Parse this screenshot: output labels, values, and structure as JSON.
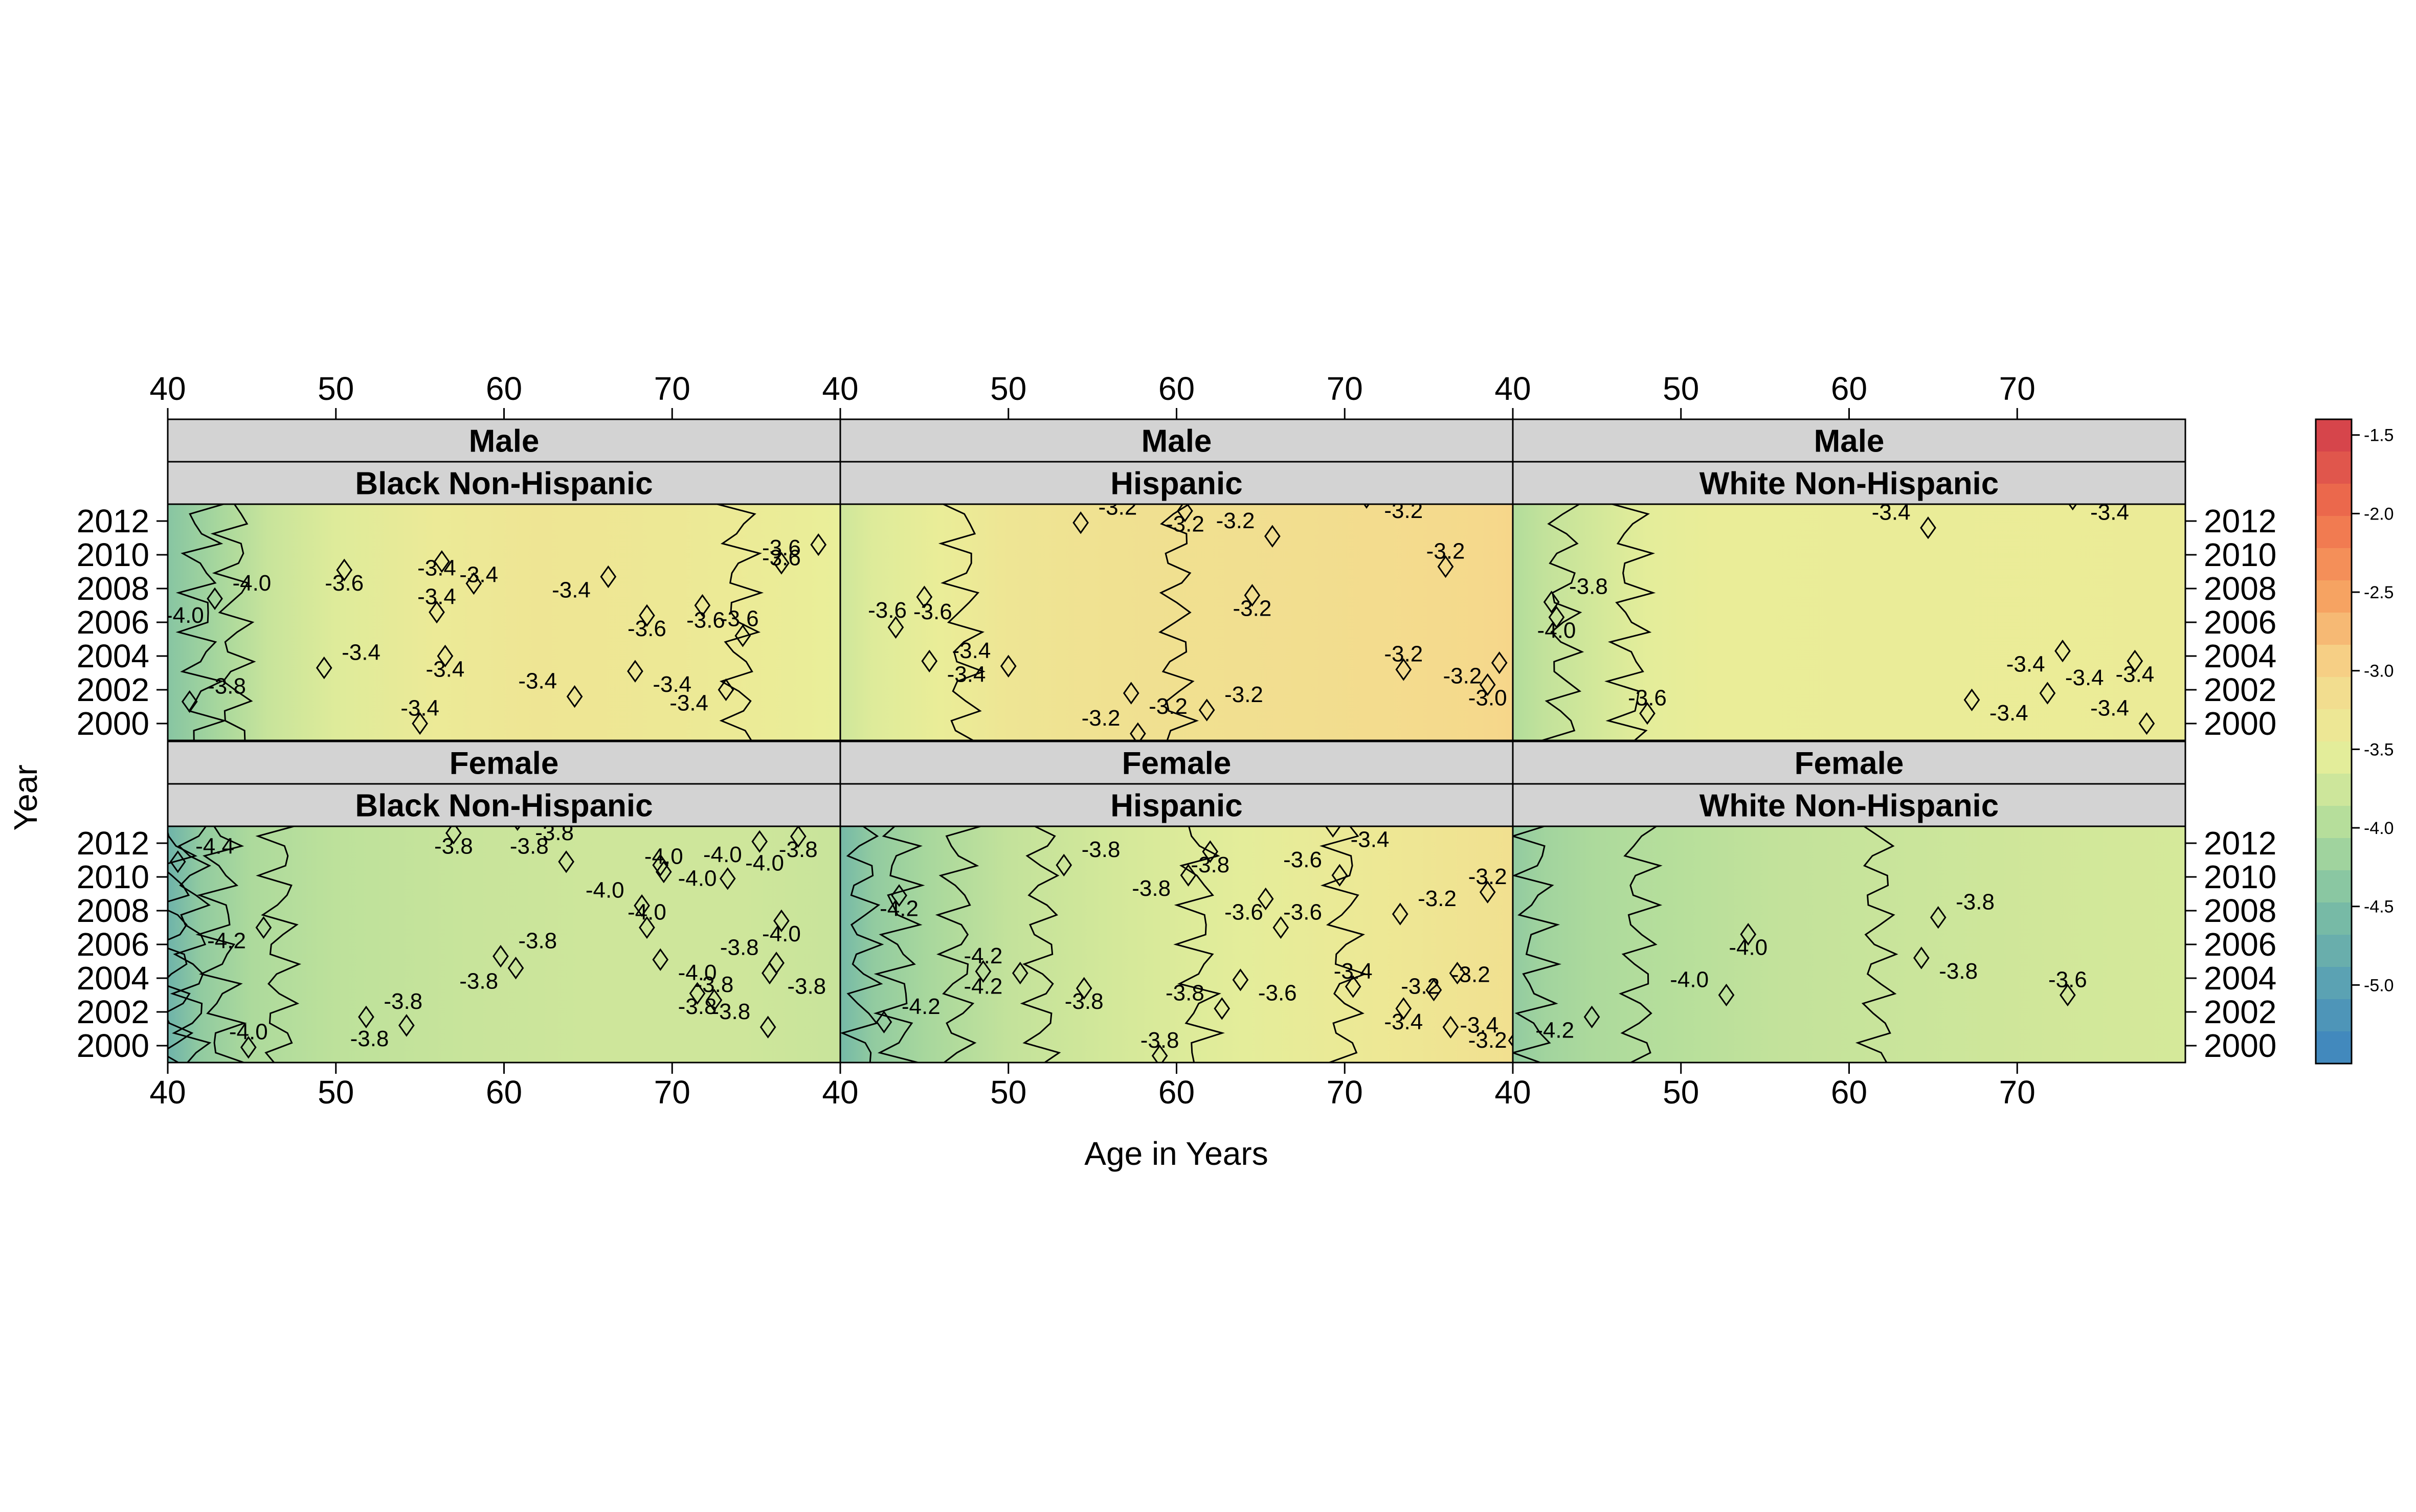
{
  "chart_data": {
    "type": "heatmap",
    "subtype": "filled contour (levelplot) with contour lines, trellis panels",
    "xlabel": "Age in Years",
    "ylabel": "Year",
    "xlim": [
      40,
      80
    ],
    "ylim": [
      1999,
      2013
    ],
    "x_ticks": [
      "40",
      "50",
      "60",
      "70"
    ],
    "y_ticks": [
      "2000",
      "2002",
      "2004",
      "2006",
      "2008",
      "2010",
      "2012"
    ],
    "grid": false,
    "colorkey": {
      "placement": "right",
      "range": [
        -5.5,
        -1.4
      ],
      "tick_labels": [
        "-1.5",
        "-2.0",
        "-2.5",
        "-3.0",
        "-3.5",
        "-4.0",
        "-4.5",
        "-5.0"
      ],
      "tick_values": [
        -1.5,
        -2.0,
        -2.5,
        -3.0,
        -3.5,
        -4.0,
        -4.5,
        -5.0
      ],
      "color_stops": [
        {
          "value": -5.5,
          "color": "#3c83c0"
        },
        {
          "value": -5.0,
          "color": "#5aa1b3"
        },
        {
          "value": -4.5,
          "color": "#7cbfa4"
        },
        {
          "value": -4.0,
          "color": "#b2dd9b"
        },
        {
          "value": -3.5,
          "color": "#e9ef9a"
        },
        {
          "value": -3.0,
          "color": "#f6d68a"
        },
        {
          "value": -2.5,
          "color": "#f6a060"
        },
        {
          "value": -2.0,
          "color": "#ef6f4c"
        },
        {
          "value": -1.4,
          "color": "#d13c4b"
        }
      ]
    },
    "panels": [
      {
        "sex": "Male",
        "race": "Black Non-Hispanic",
        "row": 0,
        "col": 0,
        "field": {
          "type": "gradient",
          "x_values": [
            40,
            43,
            46,
            50,
            56,
            62,
            70,
            78,
            80
          ],
          "z_values": [
            -4.4,
            -4.1,
            -3.8,
            -3.6,
            -3.4,
            -3.3,
            -3.35,
            -3.45,
            -3.5
          ]
        },
        "contour_labels": [
          {
            "text": "-4.0",
            "age": 45,
            "year": 2008.3
          },
          {
            "text": "-3.6",
            "age": 50.5,
            "year": 2008.3
          },
          {
            "text": "-3.4",
            "age": 56,
            "year": 2009.2
          },
          {
            "text": "-3.4",
            "age": 58.5,
            "year": 2008.8
          },
          {
            "text": "-3.4",
            "age": 56,
            "year": 2007.5
          },
          {
            "text": "-3.4",
            "age": 64,
            "year": 2007.9
          },
          {
            "text": "-4.0",
            "age": 41,
            "year": 2006.4
          },
          {
            "text": "-3.6",
            "age": 68.5,
            "year": 2005.6
          },
          {
            "text": "-3.6",
            "age": 72,
            "year": 2006.1
          },
          {
            "text": "-3.6",
            "age": 74,
            "year": 2006.2
          },
          {
            "text": "-3.6",
            "age": 76.5,
            "year": 2010.4
          },
          {
            "text": "-3.6",
            "age": 76.5,
            "year": 2009.8
          },
          {
            "text": "-3.4",
            "age": 51.5,
            "year": 2004.2
          },
          {
            "text": "-3.4",
            "age": 56.5,
            "year": 2003.2
          },
          {
            "text": "-3.4",
            "age": 62,
            "year": 2002.5
          },
          {
            "text": "-3.4",
            "age": 70,
            "year": 2002.3
          },
          {
            "text": "-3.4",
            "age": 55,
            "year": 2000.9
          },
          {
            "text": "-3.4",
            "age": 71,
            "year": 2001.2
          },
          {
            "text": "-3.8",
            "age": 43.5,
            "year": 2002.2
          }
        ]
      },
      {
        "sex": "Male",
        "race": "Hispanic",
        "row": 0,
        "col": 1,
        "field": {
          "type": "gradient",
          "x_values": [
            40,
            42,
            46,
            50,
            56,
            64,
            72,
            78,
            80
          ],
          "z_values": [
            -3.75,
            -3.6,
            -3.45,
            -3.3,
            -3.22,
            -3.18,
            -3.12,
            -3.05,
            -3.0
          ]
        },
        "contour_labels": [
          {
            "text": "-3.2",
            "age": 56.5,
            "year": 2012.8
          },
          {
            "text": "-3.2",
            "age": 60.5,
            "year": 2011.8
          },
          {
            "text": "-3.2",
            "age": 63.5,
            "year": 2012.0
          },
          {
            "text": "-3.2",
            "age": 73.5,
            "year": 2012.6
          },
          {
            "text": "-3.2",
            "age": 76,
            "year": 2010.2
          },
          {
            "text": "-3.6",
            "age": 42.8,
            "year": 2006.7
          },
          {
            "text": "-3.6",
            "age": 45.5,
            "year": 2006.6
          },
          {
            "text": "-3.2",
            "age": 64.5,
            "year": 2006.8
          },
          {
            "text": "-3.4",
            "age": 47.8,
            "year": 2004.3
          },
          {
            "text": "-3.4",
            "age": 47.5,
            "year": 2002.9
          },
          {
            "text": "-3.2",
            "age": 73.5,
            "year": 2004.1
          },
          {
            "text": "-3.2",
            "age": 77,
            "year": 2002.8
          },
          {
            "text": "-3.2",
            "age": 64,
            "year": 2001.7
          },
          {
            "text": "-3.0",
            "age": 78.5,
            "year": 2001.5
          },
          {
            "text": "-3.2",
            "age": 55.5,
            "year": 2000.3
          },
          {
            "text": "-3.2",
            "age": 59.5,
            "year": 2001.0
          }
        ]
      },
      {
        "sex": "Male",
        "race": "White Non-Hispanic",
        "row": 0,
        "col": 2,
        "field": {
          "type": "gradient",
          "x_values": [
            40,
            42,
            45,
            48,
            52,
            80
          ],
          "z_values": [
            -4.0,
            -3.85,
            -3.7,
            -3.55,
            -3.45,
            -3.42
          ]
        },
        "contour_labels": [
          {
            "text": "-3.8",
            "age": 44.5,
            "year": 2008.1
          },
          {
            "text": "-4.0",
            "age": 42.6,
            "year": 2005.5
          },
          {
            "text": "-3.4",
            "age": 62.5,
            "year": 2012.5
          },
          {
            "text": "-3.4",
            "age": 75.5,
            "year": 2012.5
          },
          {
            "text": "-3.6",
            "age": 48,
            "year": 2001.5
          },
          {
            "text": "-3.4",
            "age": 70.5,
            "year": 2003.5
          },
          {
            "text": "-3.4",
            "age": 74,
            "year": 2002.7
          },
          {
            "text": "-3.4",
            "age": 77,
            "year": 2002.9
          },
          {
            "text": "-3.4",
            "age": 75.5,
            "year": 2000.9
          },
          {
            "text": "-3.4",
            "age": 69.5,
            "year": 2000.6
          }
        ]
      },
      {
        "sex": "Female",
        "race": "Black Non-Hispanic",
        "row": 1,
        "col": 0,
        "field": {
          "type": "gradient",
          "x_values": [
            40,
            42,
            45,
            50,
            58,
            66,
            74,
            80
          ],
          "z_values": [
            -4.7,
            -4.3,
            -4.05,
            -3.9,
            -3.8,
            -3.75,
            -3.75,
            -3.8
          ]
        },
        "contour_labels": [
          {
            "text": "-4.4",
            "age": 42.8,
            "year": 2011.8
          },
          {
            "text": "-3.8",
            "age": 57,
            "year": 2011.8
          },
          {
            "text": "-3.8",
            "age": 61.5,
            "year": 2011.8
          },
          {
            "text": "-3.8",
            "age": 63,
            "year": 2012.6
          },
          {
            "text": "-4.0",
            "age": 69.5,
            "year": 2011.2
          },
          {
            "text": "-4.0",
            "age": 73,
            "year": 2011.3
          },
          {
            "text": "-4.0",
            "age": 75.5,
            "year": 2010.8
          },
          {
            "text": "-3.8",
            "age": 77.5,
            "year": 2011.6
          },
          {
            "text": "-4.0",
            "age": 66,
            "year": 2009.2
          },
          {
            "text": "-4.0",
            "age": 71.5,
            "year": 2009.9
          },
          {
            "text": "-4.0",
            "age": 68.5,
            "year": 2007.9
          },
          {
            "text": "-4.2",
            "age": 43.5,
            "year": 2006.2
          },
          {
            "text": "-3.8",
            "age": 62,
            "year": 2006.2
          },
          {
            "text": "-4.0",
            "age": 76.5,
            "year": 2006.6
          },
          {
            "text": "-3.8",
            "age": 74,
            "year": 2005.8
          },
          {
            "text": "-4.0",
            "age": 71.5,
            "year": 2004.3
          },
          {
            "text": "-3.8",
            "age": 72.5,
            "year": 2003.6
          },
          {
            "text": "-3.8",
            "age": 58.5,
            "year": 2003.8
          },
          {
            "text": "-3.8",
            "age": 54,
            "year": 2002.6
          },
          {
            "text": "-3.8",
            "age": 71.5,
            "year": 2002.3
          },
          {
            "text": "-3.8",
            "age": 73.5,
            "year": 2002.0
          },
          {
            "text": "-3.8",
            "age": 78,
            "year": 2003.5
          },
          {
            "text": "-4.0",
            "age": 44.8,
            "year": 2000.8
          },
          {
            "text": "-3.8",
            "age": 52,
            "year": 2000.4
          }
        ]
      },
      {
        "sex": "Female",
        "race": "Hispanic",
        "row": 1,
        "col": 1,
        "field": {
          "type": "gradient",
          "x_values": [
            40,
            42,
            45,
            50,
            56,
            64,
            72,
            80
          ],
          "z_values": [
            -4.6,
            -4.3,
            -4.1,
            -3.85,
            -3.7,
            -3.55,
            -3.35,
            -3.2
          ]
        },
        "contour_labels": [
          {
            "text": "-3.8",
            "age": 55.5,
            "year": 2011.6
          },
          {
            "text": "-3.8",
            "age": 62,
            "year": 2010.7
          },
          {
            "text": "-3.6",
            "age": 67.5,
            "year": 2011.0
          },
          {
            "text": "-3.4",
            "age": 71.5,
            "year": 2012.2
          },
          {
            "text": "-3.2",
            "age": 78.5,
            "year": 2010.0
          },
          {
            "text": "-3.8",
            "age": 58.5,
            "year": 2009.3
          },
          {
            "text": "-3.2",
            "age": 75.5,
            "year": 2008.7
          },
          {
            "text": "-4.2",
            "age": 43.5,
            "year": 2008.1
          },
          {
            "text": "-3.6",
            "age": 64,
            "year": 2007.9
          },
          {
            "text": "-3.6",
            "age": 67.5,
            "year": 2007.9
          },
          {
            "text": "-4.2",
            "age": 48.5,
            "year": 2005.3
          },
          {
            "text": "-4.2",
            "age": 48.5,
            "year": 2003.5
          },
          {
            "text": "-4.2",
            "age": 44.8,
            "year": 2002.3
          },
          {
            "text": "-3.8",
            "age": 54.5,
            "year": 2002.6
          },
          {
            "text": "-3.8",
            "age": 60.5,
            "year": 2003.1
          },
          {
            "text": "-3.6",
            "age": 66,
            "year": 2003.1
          },
          {
            "text": "-3.4",
            "age": 70.5,
            "year": 2004.4
          },
          {
            "text": "-3.2",
            "age": 74.5,
            "year": 2003.5
          },
          {
            "text": "-3.2",
            "age": 77.5,
            "year": 2004.2
          },
          {
            "text": "-3.4",
            "age": 73.5,
            "year": 2001.4
          },
          {
            "text": "-3.4",
            "age": 78,
            "year": 2001.2
          },
          {
            "text": "-3.2",
            "age": 78.5,
            "year": 2000.3
          },
          {
            "text": "-3.8",
            "age": 59,
            "year": 2000.3
          }
        ]
      },
      {
        "sex": "Female",
        "race": "White Non-Hispanic",
        "row": 1,
        "col": 2,
        "field": {
          "type": "gradient",
          "x_values": [
            40,
            42,
            45,
            50,
            56,
            64,
            72,
            80
          ],
          "z_values": [
            -4.3,
            -4.15,
            -4.05,
            -3.95,
            -3.85,
            -3.78,
            -3.72,
            -3.68
          ]
        },
        "contour_labels": [
          {
            "text": "-3.8",
            "age": 67.5,
            "year": 2008.5
          },
          {
            "text": "-4.0",
            "age": 54,
            "year": 2005.8
          },
          {
            "text": "-4.0",
            "age": 50.5,
            "year": 2003.9
          },
          {
            "text": "-3.8",
            "age": 66.5,
            "year": 2004.4
          },
          {
            "text": "-3.6",
            "age": 73,
            "year": 2003.9
          },
          {
            "text": "-4.2",
            "age": 42.5,
            "year": 2000.9
          }
        ]
      }
    ]
  }
}
